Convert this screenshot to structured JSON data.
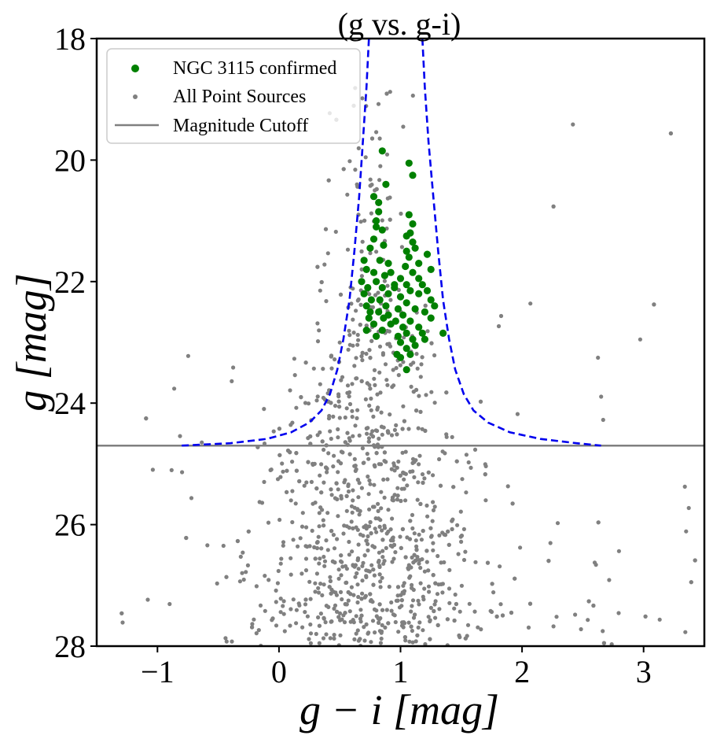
{
  "chart_data": {
    "type": "scatter",
    "title": "(g vs. g-i)",
    "xlabel": "g − i [mag]",
    "ylabel": "g [mag]",
    "xlim": [
      -1.5,
      3.5
    ],
    "ylim": [
      18,
      28
    ],
    "y_inverted": true,
    "xticks": [
      -1,
      0,
      1,
      2,
      3
    ],
    "xtick_labels": [
      "−1",
      "0",
      "1",
      "2",
      "3"
    ],
    "yticks": [
      18,
      20,
      22,
      24,
      26,
      28
    ],
    "ytick_labels": [
      "18",
      "20",
      "22",
      "24",
      "26",
      "28"
    ],
    "grid": false,
    "legend_position": "top-left",
    "magnitude_cutoff": 24.7,
    "colors": {
      "confirmed": "#008000",
      "all_sources": "#808080",
      "cutoff": "#808080",
      "envelope": "#0000ee"
    },
    "series": [
      {
        "name": "NGC 3115 confirmed",
        "kind": "scatter",
        "points": [
          [
            0.85,
            19.85
          ],
          [
            1.07,
            20.05
          ],
          [
            1.1,
            20.25
          ],
          [
            0.88,
            20.4
          ],
          [
            0.78,
            20.6
          ],
          [
            0.82,
            20.7
          ],
          [
            0.82,
            20.85
          ],
          [
            1.07,
            20.9
          ],
          [
            0.8,
            21.0
          ],
          [
            1.1,
            21.05
          ],
          [
            0.8,
            21.1
          ],
          [
            0.85,
            21.15
          ],
          [
            1.08,
            21.2
          ],
          [
            1.05,
            21.25
          ],
          [
            0.78,
            21.3
          ],
          [
            1.1,
            21.35
          ],
          [
            0.86,
            21.4
          ],
          [
            0.75,
            21.45
          ],
          [
            1.12,
            21.45
          ],
          [
            1.05,
            21.5
          ],
          [
            1.22,
            21.55
          ],
          [
            1.07,
            21.6
          ],
          [
            0.7,
            21.65
          ],
          [
            0.83,
            21.65
          ],
          [
            0.9,
            21.7
          ],
          [
            1.15,
            21.7
          ],
          [
            1.04,
            21.75
          ],
          [
            0.72,
            21.8
          ],
          [
            0.78,
            21.85
          ],
          [
            1.1,
            21.85
          ],
          [
            1.25,
            21.8
          ],
          [
            0.87,
            21.9
          ],
          [
            1.0,
            21.95
          ],
          [
            1.15,
            21.95
          ],
          [
            0.68,
            22.0
          ],
          [
            0.8,
            22.0
          ],
          [
            0.95,
            22.05
          ],
          [
            1.05,
            22.05
          ],
          [
            0.73,
            22.1
          ],
          [
            0.85,
            22.1
          ],
          [
            1.08,
            22.15
          ],
          [
            1.22,
            22.15
          ],
          [
            0.7,
            22.2
          ],
          [
            0.9,
            22.2
          ],
          [
            1.0,
            22.25
          ],
          [
            1.15,
            22.2
          ],
          [
            0.76,
            22.3
          ],
          [
            0.83,
            22.3
          ],
          [
            1.05,
            22.35
          ],
          [
            1.25,
            22.3
          ],
          [
            0.72,
            22.4
          ],
          [
            0.88,
            22.4
          ],
          [
            0.98,
            22.45
          ],
          [
            1.12,
            22.45
          ],
          [
            0.75,
            22.5
          ],
          [
            0.82,
            22.5
          ],
          [
            1.02,
            22.55
          ],
          [
            1.2,
            22.5
          ],
          [
            0.74,
            22.6
          ],
          [
            0.86,
            22.6
          ],
          [
            0.96,
            22.65
          ],
          [
            1.08,
            22.65
          ],
          [
            1.25,
            22.6
          ],
          [
            0.78,
            22.7
          ],
          [
            0.92,
            22.7
          ],
          [
            1.02,
            22.75
          ],
          [
            1.15,
            22.75
          ],
          [
            0.72,
            22.8
          ],
          [
            0.85,
            22.8
          ],
          [
            1.05,
            22.85
          ],
          [
            1.18,
            22.85
          ],
          [
            1.35,
            22.85
          ],
          [
            0.8,
            22.9
          ],
          [
            0.98,
            22.9
          ],
          [
            1.1,
            22.95
          ],
          [
            1.0,
            23.0
          ],
          [
            1.12,
            23.05
          ],
          [
            1.05,
            23.1
          ],
          [
            0.97,
            23.2
          ],
          [
            1.08,
            23.2
          ],
          [
            1.0,
            23.25
          ],
          [
            1.05,
            23.45
          ],
          [
            1.2,
            22.95
          ],
          [
            0.9,
            22.55
          ],
          [
            1.28,
            22.4
          ],
          [
            0.95,
            22.1
          ],
          [
            1.18,
            22.05
          ],
          [
            0.92,
            21.85
          ]
        ]
      },
      {
        "name": "All Point Sources",
        "kind": "scatter",
        "n_points": 1400
      },
      {
        "name": "Magnitude Cutoff",
        "kind": "hline",
        "y": 24.7
      }
    ],
    "envelope_curve": {
      "style": "dashed",
      "left_branch": [
        [
          -0.8,
          24.7
        ],
        [
          -0.4,
          24.66
        ],
        [
          -0.1,
          24.59
        ],
        [
          0.1,
          24.48
        ],
        [
          0.25,
          24.32
        ],
        [
          0.35,
          24.12
        ],
        [
          0.42,
          23.85
        ],
        [
          0.48,
          23.45
        ],
        [
          0.53,
          22.95
        ],
        [
          0.58,
          22.3
        ],
        [
          0.62,
          21.5
        ],
        [
          0.66,
          20.6
        ],
        [
          0.69,
          19.7
        ],
        [
          0.72,
          18.8
        ],
        [
          0.74,
          18.0
        ]
      ],
      "right_branch": [
        [
          1.18,
          18.0
        ],
        [
          1.2,
          18.8
        ],
        [
          1.23,
          19.7
        ],
        [
          1.27,
          20.6
        ],
        [
          1.31,
          21.5
        ],
        [
          1.35,
          22.3
        ],
        [
          1.4,
          22.95
        ],
        [
          1.45,
          23.45
        ],
        [
          1.52,
          23.85
        ],
        [
          1.6,
          24.12
        ],
        [
          1.72,
          24.32
        ],
        [
          1.9,
          24.48
        ],
        [
          2.15,
          24.59
        ],
        [
          2.45,
          24.66
        ],
        [
          2.65,
          24.7
        ]
      ]
    },
    "legend": [
      {
        "label": "NGC 3115 confirmed",
        "marker": "big-dot"
      },
      {
        "label": "All Point Sources",
        "marker": "small-dot"
      },
      {
        "label": "Magnitude Cutoff",
        "marker": "line"
      }
    ]
  }
}
